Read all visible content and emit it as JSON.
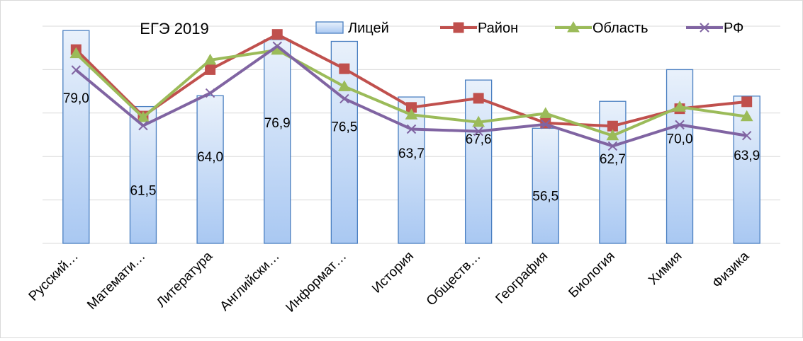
{
  "chart_data": {
    "type": "bar",
    "title": "ЕГЭ 2019",
    "xlabel": "",
    "ylabel": "",
    "ylim": [
      30,
      80
    ],
    "grid": true,
    "legend_position": "top-right",
    "categories": [
      "Русский…",
      "Математи…",
      "Литература",
      "Английски…",
      "Информат…",
      "История",
      "Обществ…",
      "География",
      "Биология",
      "Химия",
      "Физика"
    ],
    "series": [
      {
        "name": "Лицей",
        "type": "bar",
        "color": "#5b9bd5",
        "values": [
          79.0,
          61.5,
          64.0,
          76.9,
          76.5,
          63.7,
          67.6,
          56.5,
          62.7,
          70.0,
          63.9
        ]
      },
      {
        "name": "Район",
        "type": "line",
        "marker": "square",
        "color": "#c0504d",
        "values": [
          74.6,
          59.3,
          70.0,
          78.1,
          70.2,
          61.3,
          63.4,
          57.7,
          57.0,
          61.0,
          62.6
        ]
      },
      {
        "name": "Область",
        "type": "line",
        "marker": "triangle",
        "color": "#9bbb59",
        "values": [
          73.7,
          59.0,
          72.2,
          74.5,
          66.1,
          59.6,
          57.9,
          59.9,
          54.8,
          61.4,
          59.2
        ]
      },
      {
        "name": "РФ",
        "type": "line",
        "marker": "x",
        "color": "#8064a2",
        "values": [
          69.9,
          57.1,
          64.6,
          75.4,
          63.3,
          56.3,
          55.8,
          57.4,
          52.4,
          57.3,
          54.8
        ]
      }
    ],
    "data_labels": [
      "79,0",
      "61,5",
      "64,0",
      "76,9",
      "76,5",
      "63,7",
      "67,6",
      "56,5",
      "62,7",
      "70,0",
      "63,9"
    ]
  }
}
